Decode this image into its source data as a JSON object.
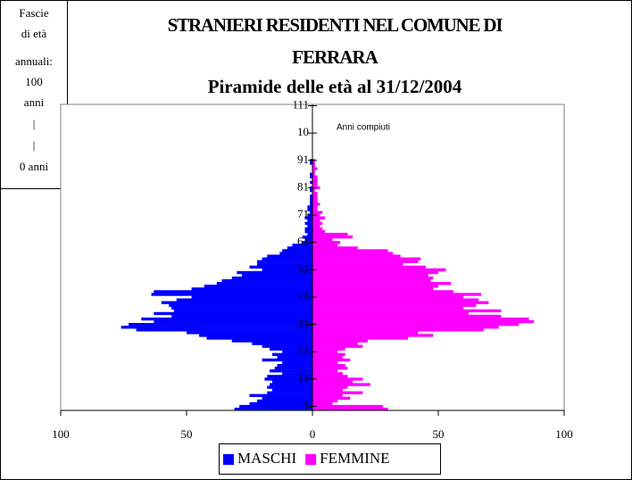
{
  "chart_data": {
    "type": "pyramid",
    "title_lines": [
      "STRANIERI RESIDENTI NEL COMUNE DI",
      "FERRARA",
      "Piramide delle età al 31/12/2004"
    ],
    "note_lines": [
      "Fascie",
      "di età",
      "annuali:",
      "100",
      "anni",
      "|",
      "|",
      "0 anni"
    ],
    "annotation": "Anni compiuti",
    "y": [
      0,
      1,
      2,
      3,
      4,
      5,
      6,
      7,
      8,
      9,
      10,
      11,
      12,
      13,
      14,
      15,
      16,
      17,
      18,
      19,
      20,
      21,
      22,
      23,
      24,
      25,
      26,
      27,
      28,
      29,
      30,
      31,
      32,
      33,
      34,
      35,
      36,
      37,
      38,
      39,
      40,
      41,
      42,
      43,
      44,
      45,
      46,
      47,
      48,
      49,
      50,
      51,
      52,
      53,
      54,
      55,
      56,
      57,
      58,
      59,
      60,
      61,
      62,
      63,
      64,
      65,
      66,
      67,
      68,
      69,
      70,
      71,
      72,
      73,
      74,
      75,
      76,
      77,
      78,
      79,
      80,
      81,
      82,
      83,
      84,
      85,
      86,
      87,
      88,
      89,
      90,
      91,
      92,
      93,
      94,
      95,
      96,
      97,
      98,
      99
    ],
    "series": [
      {
        "name": "MASCHI",
        "color": "#0000ff",
        "side": "left",
        "values": [
          31,
          29,
          25,
          22,
          20,
          25,
          18,
          16,
          18,
          17,
          16,
          19,
          18,
          12,
          17,
          15,
          14,
          12,
          20,
          14,
          16,
          12,
          17,
          20,
          24,
          32,
          42,
          45,
          50,
          70,
          76,
          73,
          63,
          68,
          56,
          63,
          55,
          56,
          57,
          60,
          54,
          48,
          64,
          63,
          48,
          43,
          38,
          36,
          32,
          28,
          30,
          20,
          25,
          22,
          22,
          20,
          18,
          13,
          12,
          10,
          8,
          4,
          3,
          4,
          2,
          3,
          3,
          2,
          3,
          2,
          3,
          2,
          1,
          2,
          2,
          1,
          1,
          1,
          1,
          0,
          1,
          1,
          0,
          1,
          0,
          1,
          1,
          0,
          0,
          0,
          1,
          1,
          0,
          0,
          0,
          0,
          0,
          0,
          0,
          0
        ]
      },
      {
        "name": "FEMMINE",
        "color": "#ff00ff",
        "side": "right",
        "values": [
          30,
          28,
          8,
          10,
          15,
          12,
          20,
          12,
          14,
          23,
          16,
          20,
          14,
          12,
          10,
          14,
          13,
          10,
          15,
          12,
          13,
          10,
          13,
          20,
          18,
          22,
          38,
          48,
          42,
          68,
          74,
          82,
          88,
          86,
          75,
          62,
          75,
          60,
          65,
          70,
          66,
          60,
          67,
          56,
          48,
          50,
          55,
          47,
          48,
          46,
          50,
          53,
          45,
          36,
          42,
          43,
          35,
          32,
          30,
          18,
          10,
          11,
          8,
          16,
          14,
          5,
          4,
          3,
          4,
          3,
          5,
          3,
          4,
          2,
          2,
          3,
          2,
          2,
          2,
          2,
          1,
          3,
          2,
          2,
          2,
          2,
          1,
          1,
          2,
          1,
          1,
          1,
          0,
          0,
          0,
          0,
          0,
          0,
          0,
          0
        ]
      }
    ],
    "xlim": [
      -100,
      100
    ],
    "xticks": [
      {
        "value": -100,
        "label": "100"
      },
      {
        "value": -50,
        "label": "50"
      },
      0,
      50,
      100
    ],
    "ylim": [
      -0.5,
      111.5
    ],
    "yticks": [
      1,
      11,
      21,
      31,
      41,
      51,
      61,
      71,
      81,
      91,
      {
        "value": 101,
        "label": "10"
      },
      111
    ],
    "legend": "bottom"
  }
}
